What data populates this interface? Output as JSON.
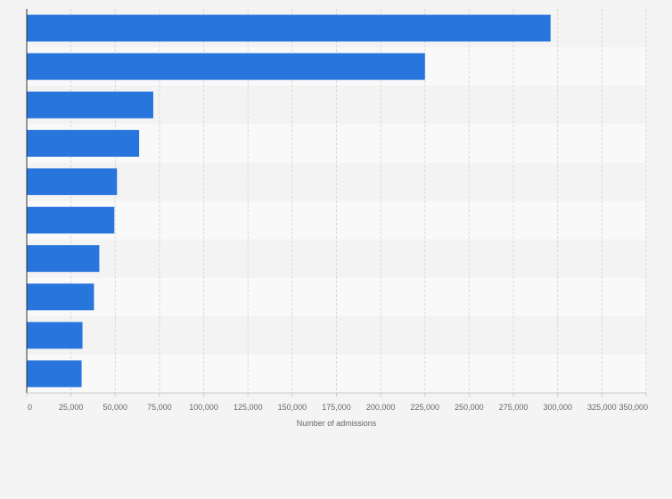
{
  "chart_data": {
    "type": "bar",
    "orientation": "horizontal",
    "title": "",
    "xlabel": "Number of admissions",
    "ylabel": "",
    "categories": [
      "",
      "",
      "",
      "",
      "",
      "",
      "",
      "",
      "",
      ""
    ],
    "values": [
      296000,
      225000,
      71500,
      63500,
      51000,
      49500,
      41000,
      38000,
      31500,
      31000
    ],
    "xlim": [
      0,
      350000
    ],
    "xticks": [
      0,
      25000,
      50000,
      75000,
      100000,
      125000,
      150000,
      175000,
      200000,
      225000,
      250000,
      275000,
      300000,
      325000,
      350000
    ],
    "xtick_labels": [
      "0",
      "25,000",
      "50,000",
      "75,000",
      "100,000",
      "125,000",
      "150,000",
      "175,000",
      "200,000",
      "225,000",
      "250,000",
      "275,000",
      "300,000",
      "325,000",
      "350,000"
    ],
    "grid": true,
    "legend": "none"
  },
  "colors": {
    "bar": "#2876dd",
    "band_light": "#f9f9f9",
    "band_dark": "#f3f3f3",
    "grid": "#d9d9d9",
    "axis": "#333333",
    "text": "#666666"
  }
}
